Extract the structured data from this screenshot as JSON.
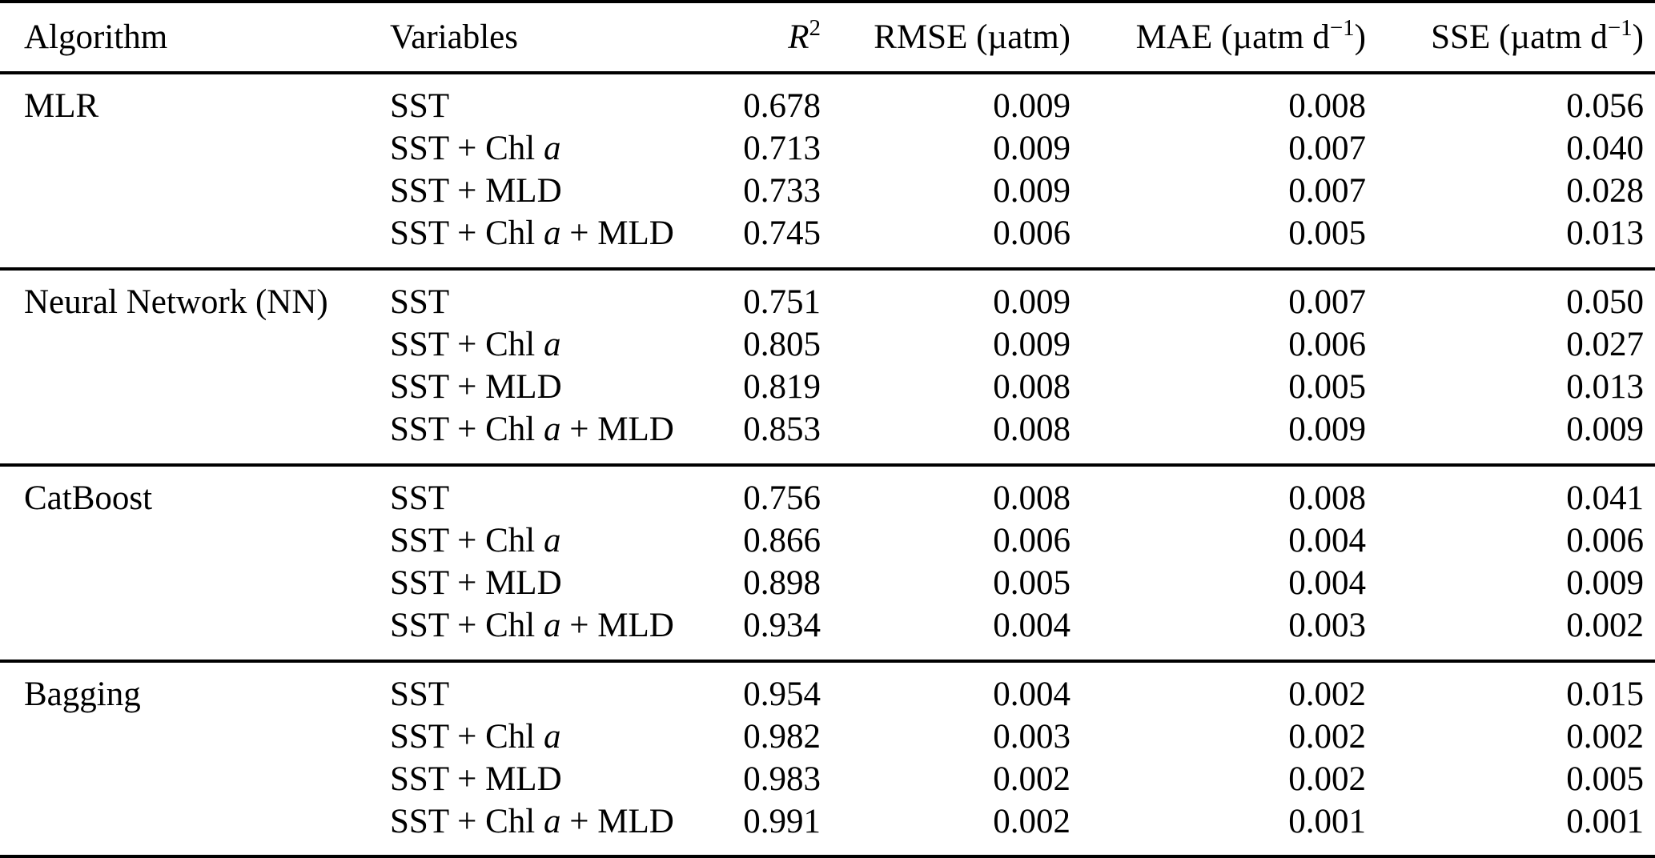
{
  "table": {
    "headers": {
      "algorithm": "Algorithm",
      "variables": "Variables",
      "r2_pre": "R",
      "r2_sup": "2",
      "rmse_label": "RMSE (µatm)",
      "mae_pre": "MAE (µatm d",
      "mae_sup": "−1",
      "mae_post": ")",
      "sse_pre": "SSE (µatm d",
      "sse_sup": "−1",
      "sse_post": ")"
    },
    "groups": [
      {
        "algorithm": "MLR",
        "rows": [
          {
            "var_pre": "SST",
            "var_it": "",
            "var_post": "",
            "r2": "0.678",
            "rmse": "0.009",
            "mae": "0.008",
            "sse": "0.056"
          },
          {
            "var_pre": "SST + Chl",
            "var_it": "a",
            "var_post": "",
            "r2": "0.713",
            "rmse": "0.009",
            "mae": "0.007",
            "sse": "0.040"
          },
          {
            "var_pre": "SST + MLD",
            "var_it": "",
            "var_post": "",
            "r2": "0.733",
            "rmse": "0.009",
            "mae": "0.007",
            "sse": "0.028"
          },
          {
            "var_pre": "SST + Chl",
            "var_it": "a",
            "var_post": "+ MLD",
            "r2": "0.745",
            "rmse": "0.006",
            "mae": "0.005",
            "sse": "0.013"
          }
        ]
      },
      {
        "algorithm": "Neural Network (NN)",
        "rows": [
          {
            "var_pre": "SST",
            "var_it": "",
            "var_post": "",
            "r2": "0.751",
            "rmse": "0.009",
            "mae": "0.007",
            "sse": "0.050"
          },
          {
            "var_pre": "SST + Chl",
            "var_it": "a",
            "var_post": "",
            "r2": "0.805",
            "rmse": "0.009",
            "mae": "0.006",
            "sse": "0.027"
          },
          {
            "var_pre": "SST + MLD",
            "var_it": "",
            "var_post": "",
            "r2": "0.819",
            "rmse": "0.008",
            "mae": "0.005",
            "sse": "0.013"
          },
          {
            "var_pre": "SST + Chl",
            "var_it": "a",
            "var_post": "+ MLD",
            "r2": "0.853",
            "rmse": "0.008",
            "mae": "0.009",
            "sse": "0.009"
          }
        ]
      },
      {
        "algorithm": "CatBoost",
        "rows": [
          {
            "var_pre": "SST",
            "var_it": "",
            "var_post": "",
            "r2": "0.756",
            "rmse": "0.008",
            "mae": "0.008",
            "sse": "0.041"
          },
          {
            "var_pre": "SST + Chl",
            "var_it": "a",
            "var_post": "",
            "r2": "0.866",
            "rmse": "0.006",
            "mae": "0.004",
            "sse": "0.006"
          },
          {
            "var_pre": "SST + MLD",
            "var_it": "",
            "var_post": "",
            "r2": "0.898",
            "rmse": "0.005",
            "mae": "0.004",
            "sse": "0.009"
          },
          {
            "var_pre": "SST + Chl",
            "var_it": "a",
            "var_post": "+ MLD",
            "r2": "0.934",
            "rmse": "0.004",
            "mae": "0.003",
            "sse": "0.002"
          }
        ]
      },
      {
        "algorithm": "Bagging",
        "rows": [
          {
            "var_pre": "SST",
            "var_it": "",
            "var_post": "",
            "r2": "0.954",
            "rmse": "0.004",
            "mae": "0.002",
            "sse": "0.015"
          },
          {
            "var_pre": "SST + Chl",
            "var_it": "a",
            "var_post": "",
            "r2": "0.982",
            "rmse": "0.003",
            "mae": "0.002",
            "sse": "0.002"
          },
          {
            "var_pre": "SST + MLD",
            "var_it": "",
            "var_post": "",
            "r2": "0.983",
            "rmse": "0.002",
            "mae": "0.002",
            "sse": "0.005"
          },
          {
            "var_pre": "SST + Chl",
            "var_it": "a",
            "var_post": "+ MLD",
            "r2": "0.991",
            "rmse": "0.002",
            "mae": "0.001",
            "sse": "0.001"
          }
        ]
      }
    ]
  }
}
